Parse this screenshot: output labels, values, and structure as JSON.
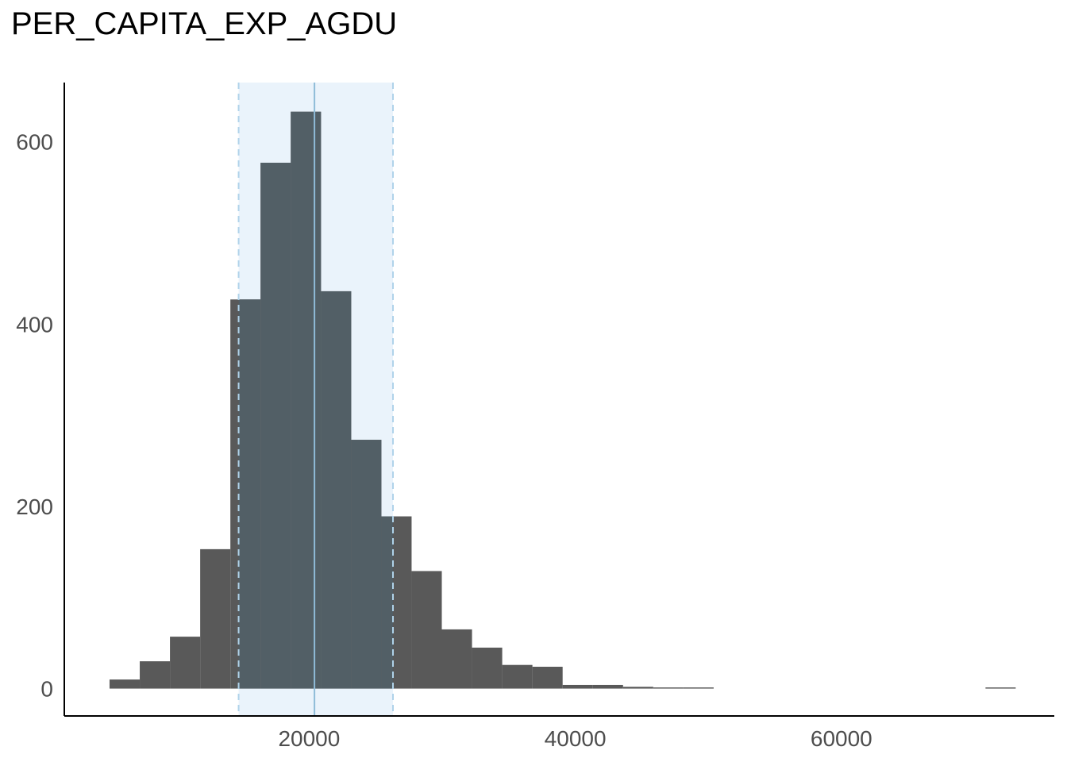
{
  "chart_data": {
    "type": "bar",
    "title": "PER_CAPITA_EXP_AGDU",
    "xlabel": "",
    "ylabel": "",
    "xlim": [
      1600,
      76000
    ],
    "ylim": [
      -30,
      665
    ],
    "x_ticks": [
      {
        "value": 20000,
        "label": "20000"
      },
      {
        "value": 40000,
        "label": "40000"
      },
      {
        "value": 60000,
        "label": "60000"
      }
    ],
    "y_ticks": [
      {
        "value": 0,
        "label": "0"
      },
      {
        "value": 200,
        "label": "200"
      },
      {
        "value": 400,
        "label": "400"
      },
      {
        "value": 600,
        "label": "600"
      }
    ],
    "bins": [
      {
        "x0": 5000,
        "x1": 7270,
        "count": 10
      },
      {
        "x0": 7270,
        "x1": 9540,
        "count": 30
      },
      {
        "x0": 9540,
        "x1": 11810,
        "count": 57
      },
      {
        "x0": 11810,
        "x1": 14080,
        "count": 153
      },
      {
        "x0": 14080,
        "x1": 16350,
        "count": 427
      },
      {
        "x0": 16350,
        "x1": 18620,
        "count": 577
      },
      {
        "x0": 18620,
        "x1": 20890,
        "count": 633
      },
      {
        "x0": 20890,
        "x1": 23160,
        "count": 436
      },
      {
        "x0": 23160,
        "x1": 25430,
        "count": 273
      },
      {
        "x0": 25430,
        "x1": 27700,
        "count": 189
      },
      {
        "x0": 27700,
        "x1": 29970,
        "count": 129
      },
      {
        "x0": 29970,
        "x1": 32240,
        "count": 65
      },
      {
        "x0": 32240,
        "x1": 34510,
        "count": 45
      },
      {
        "x0": 34510,
        "x1": 36780,
        "count": 26
      },
      {
        "x0": 36780,
        "x1": 39050,
        "count": 24
      },
      {
        "x0": 39050,
        "x1": 41320,
        "count": 4
      },
      {
        "x0": 41320,
        "x1": 43590,
        "count": 4
      },
      {
        "x0": 43590,
        "x1": 45860,
        "count": 2
      },
      {
        "x0": 45860,
        "x1": 48130,
        "count": 1
      },
      {
        "x0": 48130,
        "x1": 50400,
        "count": 1
      },
      {
        "x0": 70830,
        "x1": 73100,
        "count": 1
      }
    ],
    "mean": 20400,
    "band": [
      14700,
      26300
    ],
    "colors": {
      "bar": "#595959",
      "bar_in_band": "#525f66",
      "band_fill": "#eaf3fb",
      "mean_line": "#8fbcd8",
      "band_edge": "#b0d3ea",
      "axis": "#000000"
    }
  }
}
